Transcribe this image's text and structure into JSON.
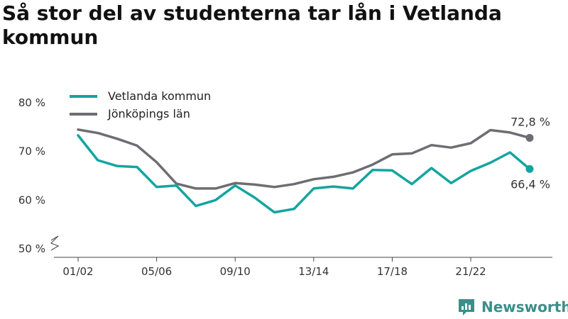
{
  "title": "Så stor del av studenterna tar lån i Vetlanda kommun",
  "brand": {
    "name": "Newsworthy",
    "icon": "newsworthy-logo-icon",
    "color": "#3a8f8a"
  },
  "chart_data": {
    "type": "line",
    "title": "Så stor del av studenterna tar lån i Vetlanda kommun",
    "x": [
      "01/02",
      "02/03",
      "03/04",
      "04/05",
      "05/06",
      "06/07",
      "07/08",
      "08/09",
      "09/10",
      "10/11",
      "11/12",
      "12/13",
      "13/14",
      "14/15",
      "15/16",
      "16/17",
      "17/18",
      "18/19",
      "19/20",
      "20/21",
      "21/22",
      "22/23",
      "23/24",
      "24/25"
    ],
    "x_tick_labels": [
      "01/02",
      "05/06",
      "09/10",
      "13/14",
      "17/18",
      "21/22"
    ],
    "y_tick_labels": [
      "80 %",
      "70 %",
      "60 %",
      "50 %"
    ],
    "y_ticks": [
      80,
      70,
      60,
      50
    ],
    "ylim": [
      50,
      80
    ],
    "y_axis_break": true,
    "grid": false,
    "legend": "top-left",
    "series": [
      {
        "name": "Vetlanda kommun",
        "color": "#12a5a0",
        "values": [
          73.3,
          68.2,
          67.0,
          66.8,
          62.7,
          63.0,
          58.8,
          60.0,
          63.0,
          60.5,
          57.5,
          58.2,
          62.4,
          62.8,
          62.4,
          66.2,
          66.1,
          63.3,
          66.6,
          63.5,
          66.0,
          67.7,
          69.8,
          66.4
        ],
        "end_label": "66,4 %"
      },
      {
        "name": "Jönköpings län",
        "color": "#6d6d73",
        "values": [
          74.5,
          73.8,
          72.6,
          71.2,
          67.8,
          63.4,
          62.4,
          62.4,
          63.5,
          63.2,
          62.7,
          63.3,
          64.3,
          64.8,
          65.7,
          67.3,
          69.4,
          69.6,
          71.3,
          70.8,
          71.7,
          74.4,
          73.9,
          72.8
        ],
        "end_label": "72,8 %"
      }
    ]
  }
}
